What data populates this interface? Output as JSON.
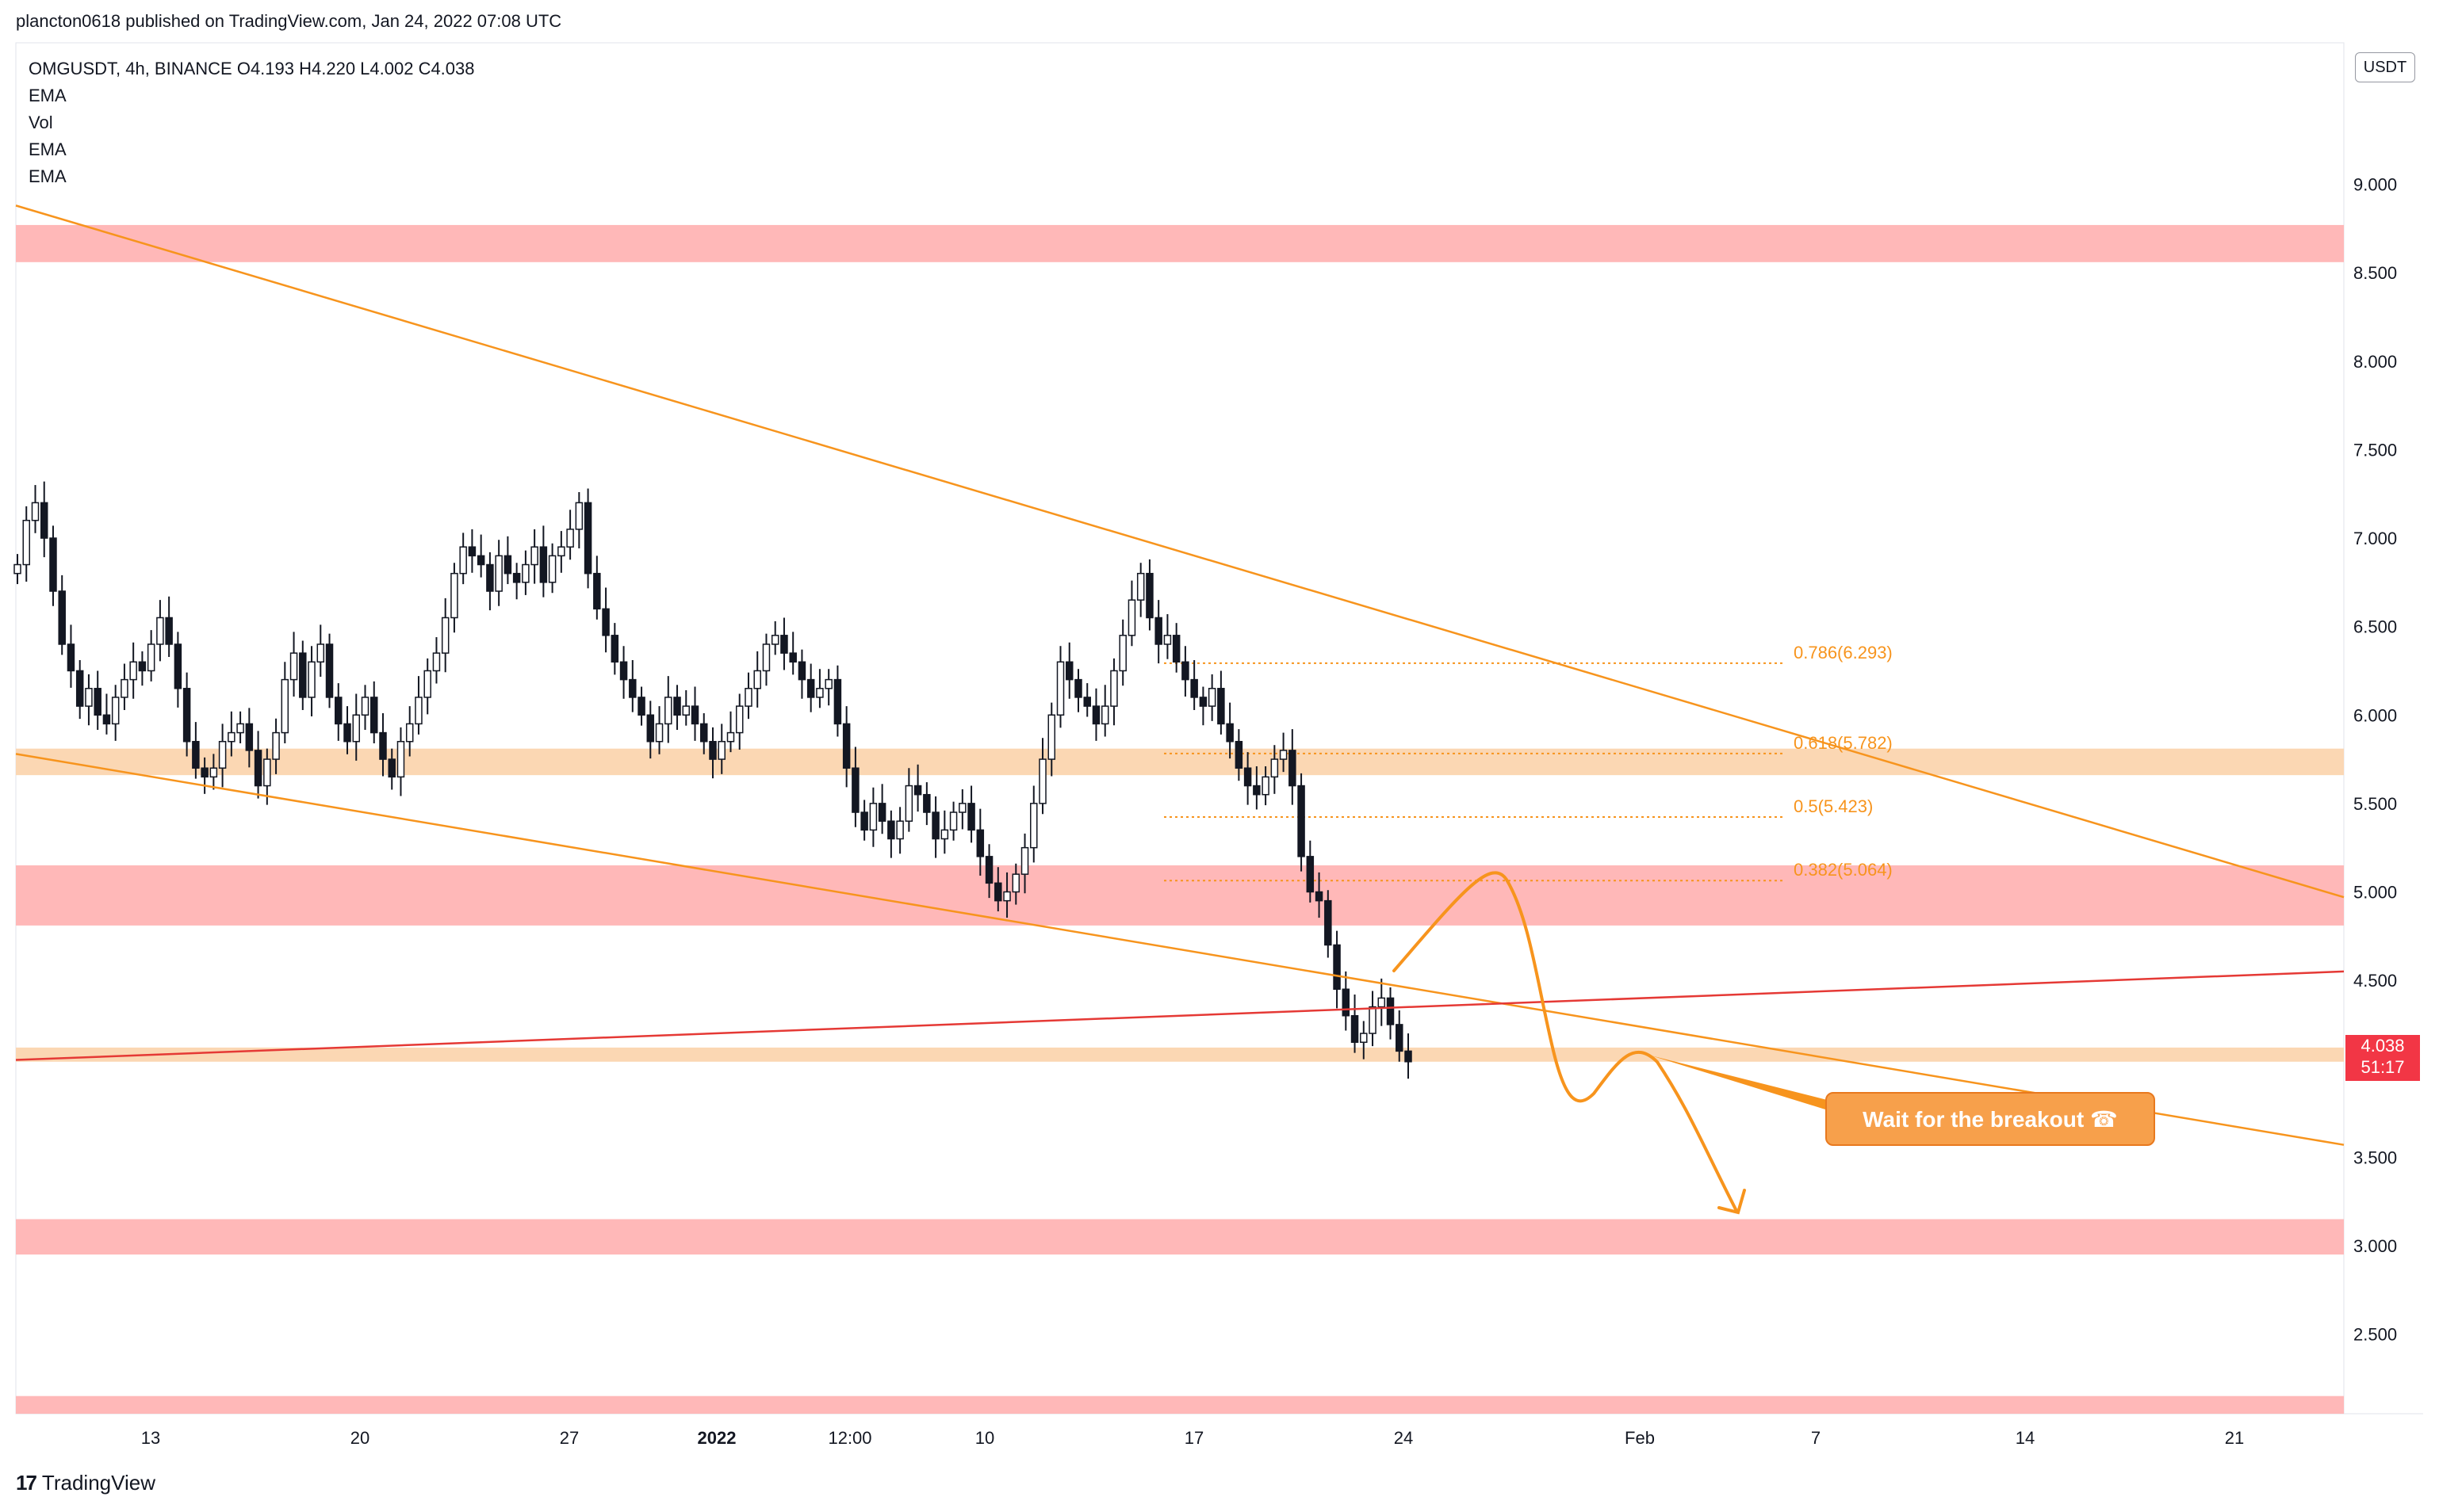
{
  "header": {
    "publisher_line": "plancton0618 published on TradingView.com, Jan 24, 2022 07:08 UTC"
  },
  "legend": {
    "symbol_line": "OMGUSDT, 4h, BINANCE  O4.193  H4.220  L4.002  C4.038",
    "indicators": [
      "EMA",
      "Vol",
      "EMA",
      "EMA"
    ]
  },
  "price_axis": {
    "unit": "USDT",
    "ticks": [
      "9.000",
      "8.500",
      "8.000",
      "7.500",
      "7.000",
      "6.500",
      "6.000",
      "5.500",
      "5.000",
      "4.500",
      "3.500",
      "3.000",
      "2.500"
    ]
  },
  "time_axis": {
    "labels": [
      "13",
      "20",
      "27",
      "2022",
      "12:00",
      "10",
      "17",
      "24",
      "Feb",
      "7",
      "14",
      "21"
    ]
  },
  "last_price": {
    "value": "4.038",
    "countdown": "51:17",
    "color": "#f23645"
  },
  "fibonacci": [
    {
      "label": "0.786(6.293)",
      "price": 6.293
    },
    {
      "label": "0.618(5.782)",
      "price": 5.782
    },
    {
      "label": "0.5(5.423)",
      "price": 5.423
    },
    {
      "label": "0.382(5.064)",
      "price": 5.064
    }
  ],
  "annotation": {
    "callout_text": "Wait for the breakout ☎"
  },
  "footer": {
    "brand": "TradingView"
  },
  "colors": {
    "resistance_zone": "#ffb8b8",
    "support_zone": "#fbd7b3",
    "trendline": "#f7941d",
    "red_line": "#e53935",
    "candle": "#131722",
    "volume_ema": "#e91e63",
    "callout": "#f7a04b"
  },
  "chart_data": {
    "type": "candlestick",
    "symbol": "OMGUSDT",
    "interval": "4h",
    "exchange": "BINANCE",
    "ohlc_last": {
      "open": 4.193,
      "high": 4.22,
      "low": 4.002,
      "close": 4.038
    },
    "ylim": [
      2.05,
      9.8
    ],
    "zones": [
      {
        "kind": "resistance",
        "from": 8.56,
        "to": 8.77
      },
      {
        "kind": "support",
        "from": 5.66,
        "to": 5.81
      },
      {
        "kind": "resistance",
        "from": 4.81,
        "to": 5.15
      },
      {
        "kind": "support",
        "from": 4.04,
        "to": 4.12
      },
      {
        "kind": "resistance",
        "from": 2.95,
        "to": 3.15
      },
      {
        "kind": "resistance",
        "from": 2.05,
        "to": 2.15
      }
    ],
    "trendlines": [
      {
        "kind": "upper",
        "from": {
          "x": "start",
          "y": 8.88
        },
        "to": {
          "x": "end",
          "y": 4.97
        }
      },
      {
        "kind": "lower",
        "from": {
          "x": "start",
          "y": 5.78
        },
        "to": {
          "x": "end",
          "y": 3.57
        }
      },
      {
        "kind": "red",
        "from": {
          "x": "start",
          "y": 4.05
        },
        "to": {
          "x": "end",
          "y": 4.55
        }
      }
    ],
    "closes": [
      6.85,
      7.1,
      7.2,
      7.0,
      6.7,
      6.4,
      6.25,
      6.05,
      6.15,
      6.0,
      5.95,
      6.1,
      6.2,
      6.3,
      6.25,
      6.4,
      6.55,
      6.4,
      6.15,
      5.85,
      5.7,
      5.65,
      5.7,
      5.85,
      5.9,
      5.95,
      5.8,
      5.6,
      5.75,
      5.9,
      6.2,
      6.35,
      6.1,
      6.3,
      6.4,
      6.1,
      5.95,
      5.85,
      6.0,
      6.1,
      5.9,
      5.75,
      5.65,
      5.85,
      5.95,
      6.1,
      6.25,
      6.35,
      6.55,
      6.8,
      6.95,
      6.9,
      6.85,
      6.7,
      6.9,
      6.8,
      6.75,
      6.85,
      6.95,
      6.75,
      6.9,
      6.95,
      7.05,
      7.2,
      6.8,
      6.6,
      6.45,
      6.3,
      6.2,
      6.1,
      6.0,
      5.85,
      5.95,
      6.1,
      6.0,
      6.05,
      5.95,
      5.85,
      5.75,
      5.85,
      5.9,
      6.05,
      6.15,
      6.25,
      6.4,
      6.45,
      6.35,
      6.3,
      6.2,
      6.1,
      6.15,
      6.2,
      5.95,
      5.7,
      5.45,
      5.35,
      5.5,
      5.4,
      5.3,
      5.4,
      5.6,
      5.55,
      5.45,
      5.3,
      5.35,
      5.45,
      5.5,
      5.35,
      5.2,
      5.05,
      4.95,
      5.0,
      5.1,
      5.25,
      5.5,
      5.75,
      6.0,
      6.3,
      6.2,
      6.1,
      6.05,
      5.95,
      6.05,
      6.25,
      6.45,
      6.65,
      6.8,
      6.55,
      6.4,
      6.45,
      6.3,
      6.2,
      6.1,
      6.05,
      6.15,
      5.95,
      5.85,
      5.7,
      5.6,
      5.55,
      5.65,
      5.75,
      5.8,
      5.6,
      5.2,
      5.0,
      4.95,
      4.7,
      4.45,
      4.3,
      4.15,
      4.2,
      4.35,
      4.4,
      4.25,
      4.1,
      4.04
    ]
  }
}
